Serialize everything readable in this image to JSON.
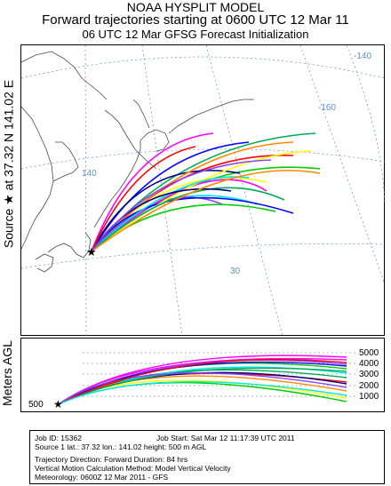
{
  "title": {
    "line1": "NOAA HYSPLIT MODEL",
    "line2": "Forward trajectories starting at 0600 UTC 12 Mar 11",
    "line3": "06 UTC 12 Mar    GFSG  Forecast Initialization"
  },
  "side_labels": {
    "source": "Source ★ at   37.32 N  141.02 E",
    "vertical_axis": "Meters AGL"
  },
  "map": {
    "lon_labels": [
      "-140",
      "-160",
      "140"
    ],
    "lat_labels": [
      "30"
    ],
    "source_marker": "★"
  },
  "height_panel": {
    "tick_labels": [
      "5000",
      "4000",
      "3000",
      "2000",
      "1000"
    ],
    "start_label": "500"
  },
  "info": {
    "job_id": "Job ID: 15362",
    "job_start": "Job Start: Sat Mar 12 11:17:39 UTC 2011",
    "source_line": "Source 1       lat.: 37.32    lon.: 141.02    height: 500 m AGL",
    "direction_line": "Trajectory Direction: Forward       Duration: 84 hrs",
    "vertical_motion_line": "Vertical Motion Calculation Method:           Model Vertical Velocity",
    "meteorology_line": "Meteorology: 0600Z 12 Mar 2011 - GFS"
  },
  "colors": {
    "graticule": "#5b8fc9",
    "coast": "#4a4a4a",
    "trajectories": [
      "#ff00ff",
      "#0000ff",
      "#ff0000",
      "#00cc00",
      "#ffff00",
      "#00e5e5",
      "#00aa55",
      "#000080",
      "#ff8800",
      "#8844ff"
    ]
  }
}
